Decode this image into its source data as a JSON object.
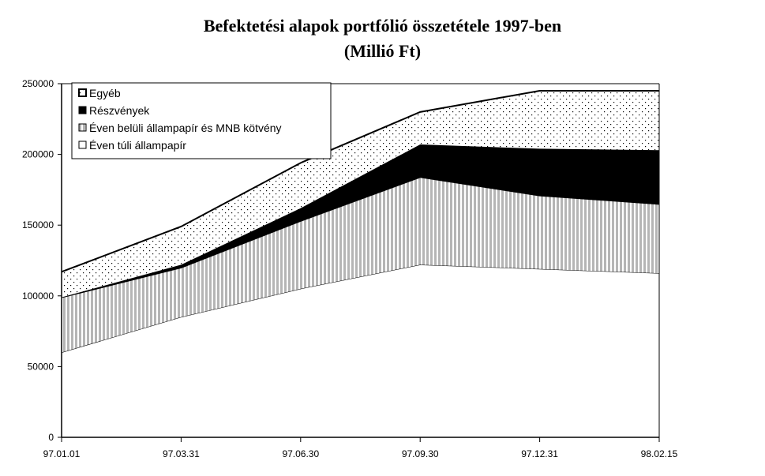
{
  "chart_data": {
    "type": "area",
    "stacked": true,
    "title": "Befektetési alapok portfólió összetétele 1997-ben",
    "subtitle": "(Millió Ft)",
    "categories": [
      "97.01.01",
      "97.03.31",
      "97.06.30",
      "97.09.30",
      "97.12.31",
      "98.02.15"
    ],
    "ylim": [
      0,
      250000
    ],
    "yticks": [
      0,
      50000,
      100000,
      150000,
      200000,
      250000
    ],
    "grid": false,
    "legend_position": "top-left",
    "series": [
      {
        "name": "Éven túli állampapír",
        "values": [
          60000,
          85000,
          105000,
          122000,
          119000,
          116000
        ],
        "pattern": "white"
      },
      {
        "name": "Éven belüli állampapír és MNB kötvény",
        "values": [
          39000,
          35000,
          48000,
          62000,
          52000,
          49000
        ],
        "pattern": "vertical-stripes"
      },
      {
        "name": "Részvények",
        "values": [
          0,
          2000,
          9000,
          23000,
          33000,
          38000
        ],
        "pattern": "black"
      },
      {
        "name": "Egyéb",
        "values": [
          18000,
          27000,
          32000,
          23000,
          41000,
          42000
        ],
        "pattern": "dots"
      }
    ],
    "legend_order": [
      "Egyéb",
      "Részvények",
      "Éven belüli állampapír és MNB kötvény",
      "Éven túli állampapír"
    ]
  }
}
